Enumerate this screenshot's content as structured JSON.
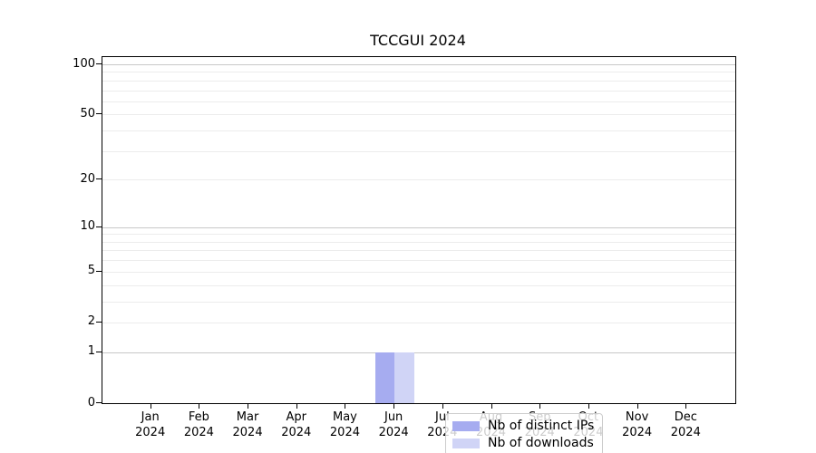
{
  "chart_data": {
    "type": "bar",
    "title": "TCCGUI 2024",
    "categories": [
      "Jan 2024",
      "Feb 2024",
      "Mar 2024",
      "Apr 2024",
      "May 2024",
      "Jun 2024",
      "Jul 2024",
      "Aug 2024",
      "Sep 2024",
      "Oct 2024",
      "Nov 2024",
      "Dec 2024"
    ],
    "x_tick_months": [
      "Jan",
      "Feb",
      "Mar",
      "Apr",
      "May",
      "Jun",
      "Jul",
      "Aug",
      "Sep",
      "Oct",
      "Nov",
      "Dec"
    ],
    "x_tick_year": "2024",
    "series": [
      {
        "name": "Nb of distinct IPs",
        "color": "#a6acf0",
        "values": [
          0,
          0,
          0,
          0,
          0,
          1,
          0,
          0,
          0,
          0,
          0,
          0
        ]
      },
      {
        "name": "Nb of downloads",
        "color": "#d0d4f6",
        "values": [
          0,
          0,
          0,
          0,
          0,
          1,
          0,
          0,
          0,
          0,
          0,
          0
        ]
      }
    ],
    "y_scale": "log10(value+1)",
    "y_ticks": [
      0,
      1,
      2,
      5,
      10,
      20,
      50,
      100
    ],
    "y_major_gridlines": [
      1,
      10,
      100
    ],
    "y_minor_gridlines": [
      2,
      3,
      4,
      5,
      6,
      7,
      8,
      9,
      20,
      30,
      40,
      50,
      60,
      70,
      80,
      90
    ],
    "ylim": [
      0,
      111
    ],
    "xlabel": "",
    "ylabel": "",
    "grid": "horizontal",
    "legend_position": "lower center"
  },
  "colors": {
    "background": "#ffffff",
    "axis": "#000000",
    "major_grid": "#c8c8c8",
    "minor_grid": "#ececec",
    "legend_border": "#cccccc"
  }
}
